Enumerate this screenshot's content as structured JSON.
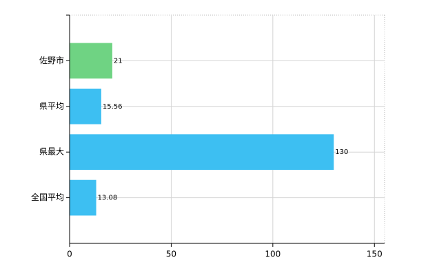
{
  "chart_data": {
    "type": "bar",
    "orientation": "horizontal",
    "categories": [
      "佐野市",
      "県平均",
      "県最大",
      "全国平均"
    ],
    "values": [
      21,
      15.56,
      130,
      13.08
    ],
    "colors": [
      "#6fd383",
      "#3dbff2",
      "#3dbff2",
      "#3dbff2"
    ],
    "xlim": [
      0,
      155
    ],
    "xticks": [
      0,
      50,
      100,
      150
    ],
    "grid": true
  }
}
